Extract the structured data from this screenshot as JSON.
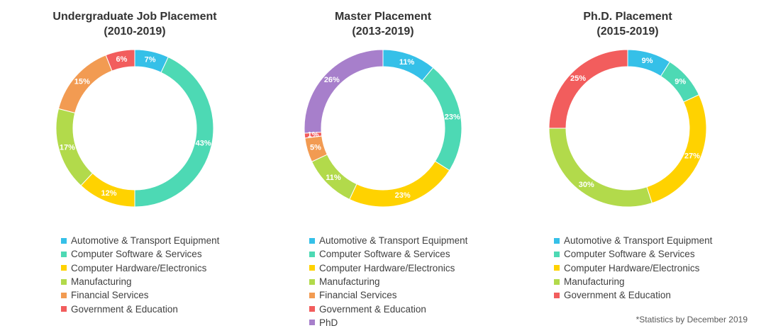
{
  "colors": {
    "Automotive & Transport Equipment": "#35C0E8",
    "Computer Software & Services": "#4DD9B4",
    "Computer Hardware/Electronics": "#FFD200",
    "Manufacturing": "#B2DA4B",
    "Financial Services": "#F29B52",
    "Government & Education": "#F25D5D",
    "PhD": "#A77FCB"
  },
  "chart_data": [
    {
      "type": "pie",
      "donut": true,
      "title": "Undergraduate Job Placement",
      "subtitle": "(2010-2019)",
      "categories": [
        "Automotive & Transport Equipment",
        "Computer Software & Services",
        "Computer Hardware/Electronics",
        "Manufacturing",
        "Financial Services",
        "Government & Education"
      ],
      "values": [
        7,
        43,
        12,
        17,
        15,
        6
      ],
      "labels": [
        "7%",
        "43%",
        "12%",
        "17%",
        "15%",
        "6%"
      ],
      "legend": "bottom"
    },
    {
      "type": "pie",
      "donut": true,
      "title": "Master Placement",
      "subtitle": "(2013-2019)",
      "categories": [
        "Automotive & Transport Equipment",
        "Computer Software & Services",
        "Computer Hardware/Electronics",
        "Manufacturing",
        "Financial Services",
        "Government & Education",
        "PhD"
      ],
      "values": [
        11,
        23,
        23,
        11,
        5,
        1,
        26
      ],
      "labels": [
        "11%",
        "23%",
        "23%",
        "11%",
        "5%",
        "1%",
        "26%"
      ],
      "legend": "bottom"
    },
    {
      "type": "pie",
      "donut": true,
      "title": "Ph.D. Placement",
      "subtitle": "(2015-2019)",
      "categories": [
        "Automotive & Transport Equipment",
        "Computer Software & Services",
        "Computer Hardware/Electronics",
        "Manufacturing",
        "Government & Education"
      ],
      "values": [
        9,
        9,
        27,
        30,
        25
      ],
      "labels": [
        "9%",
        "9%",
        "27%",
        "30%",
        "25%"
      ],
      "legend": "bottom"
    }
  ],
  "footnote": "*Statistics by December 2019"
}
